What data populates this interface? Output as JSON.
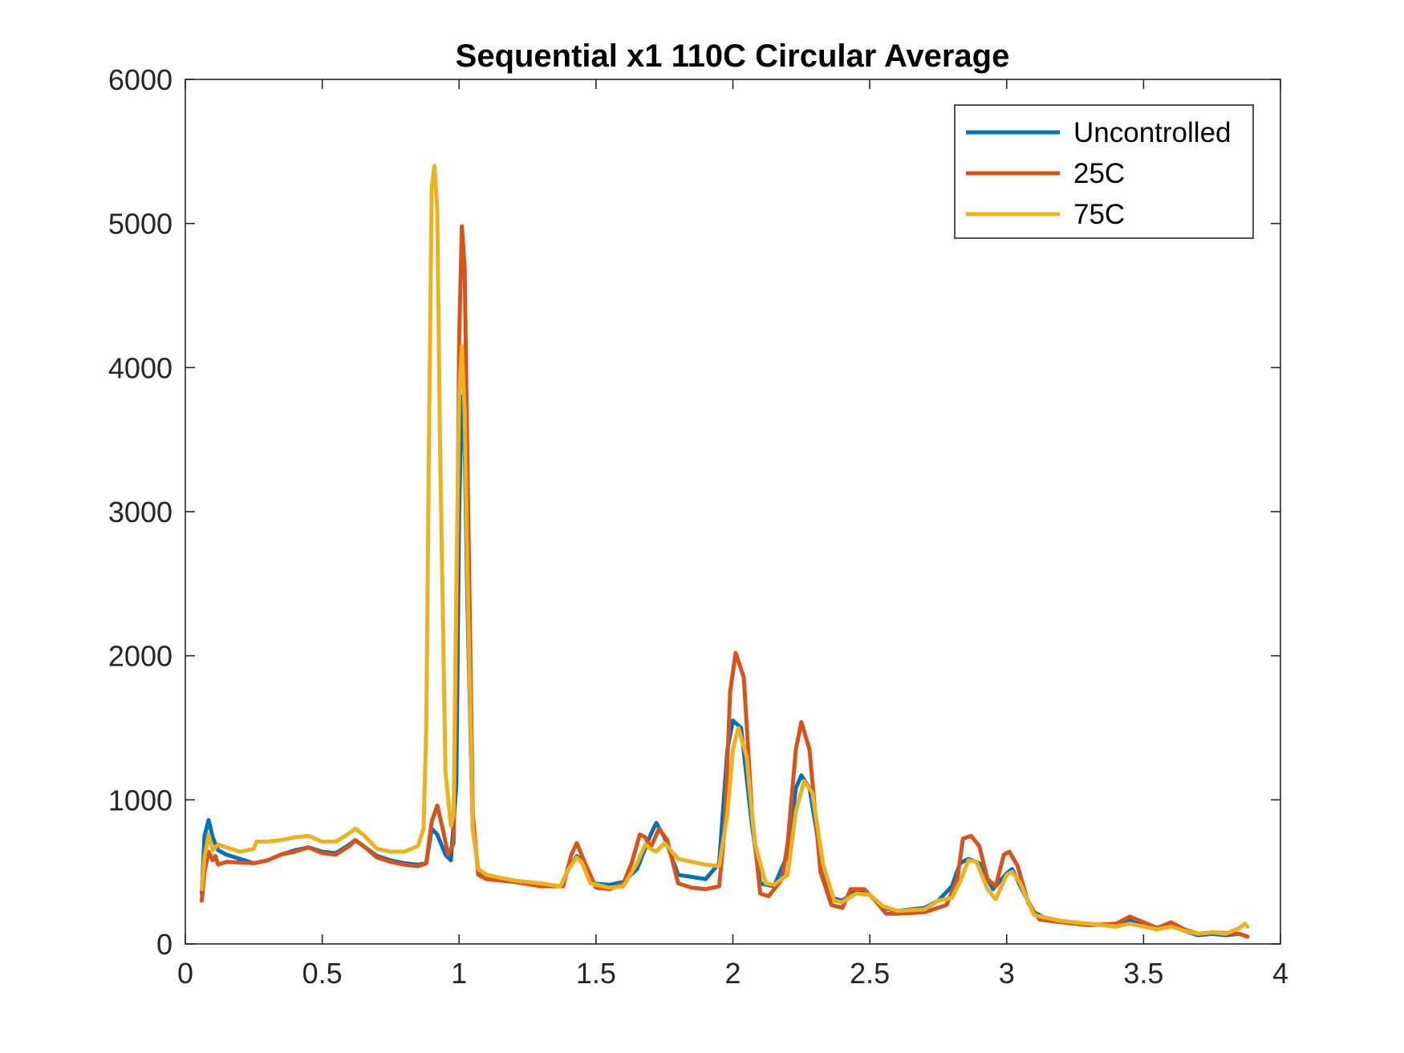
{
  "chart_data": {
    "type": "line",
    "title": "Sequential x1 110C Circular Average",
    "xlabel": "",
    "ylabel": "",
    "xlim": [
      0,
      4
    ],
    "ylim": [
      0,
      6000
    ],
    "xticks": [
      0,
      0.5,
      1,
      1.5,
      2,
      2.5,
      3,
      3.5,
      4
    ],
    "xtick_labels": [
      "0",
      "0.5",
      "1",
      "1.5",
      "2",
      "2.5",
      "3",
      "3.5",
      "4"
    ],
    "yticks": [
      0,
      1000,
      2000,
      3000,
      4000,
      5000,
      6000
    ],
    "ytick_labels": [
      "0",
      "1000",
      "2000",
      "3000",
      "4000",
      "5000",
      "6000"
    ],
    "grid": false,
    "legend": {
      "position": "top-right"
    },
    "series": [
      {
        "name": "Uncontrolled",
        "color": "#0072BD",
        "points": [
          [
            0.06,
            350
          ],
          [
            0.07,
            750
          ],
          [
            0.085,
            860
          ],
          [
            0.1,
            740
          ],
          [
            0.12,
            650
          ],
          [
            0.15,
            620
          ],
          [
            0.2,
            590
          ],
          [
            0.25,
            560
          ],
          [
            0.3,
            580
          ],
          [
            0.35,
            620
          ],
          [
            0.4,
            650
          ],
          [
            0.45,
            670
          ],
          [
            0.5,
            640
          ],
          [
            0.55,
            630
          ],
          [
            0.6,
            690
          ],
          [
            0.62,
            720
          ],
          [
            0.65,
            680
          ],
          [
            0.7,
            610
          ],
          [
            0.75,
            580
          ],
          [
            0.8,
            560
          ],
          [
            0.85,
            550
          ],
          [
            0.88,
            560
          ],
          [
            0.9,
            800
          ],
          [
            0.92,
            760
          ],
          [
            0.95,
            620
          ],
          [
            0.97,
            580
          ],
          [
            0.99,
            1100
          ],
          [
            1.0,
            3000
          ],
          [
            1.01,
            3800
          ],
          [
            1.02,
            3500
          ],
          [
            1.03,
            2400
          ],
          [
            1.05,
            800
          ],
          [
            1.07,
            520
          ],
          [
            1.1,
            470
          ],
          [
            1.2,
            440
          ],
          [
            1.3,
            410
          ],
          [
            1.37,
            400
          ],
          [
            1.4,
            520
          ],
          [
            1.43,
            610
          ],
          [
            1.45,
            580
          ],
          [
            1.48,
            420
          ],
          [
            1.55,
            410
          ],
          [
            1.6,
            430
          ],
          [
            1.65,
            520
          ],
          [
            1.7,
            760
          ],
          [
            1.72,
            840
          ],
          [
            1.75,
            740
          ],
          [
            1.8,
            480
          ],
          [
            1.9,
            450
          ],
          [
            1.95,
            560
          ],
          [
            1.98,
            1350
          ],
          [
            2.0,
            1550
          ],
          [
            2.03,
            1500
          ],
          [
            2.07,
            820
          ],
          [
            2.1,
            420
          ],
          [
            2.15,
            400
          ],
          [
            2.2,
            620
          ],
          [
            2.23,
            1080
          ],
          [
            2.25,
            1170
          ],
          [
            2.28,
            1080
          ],
          [
            2.32,
            620
          ],
          [
            2.36,
            320
          ],
          [
            2.4,
            300
          ],
          [
            2.45,
            370
          ],
          [
            2.5,
            340
          ],
          [
            2.55,
            250
          ],
          [
            2.6,
            230
          ],
          [
            2.7,
            250
          ],
          [
            2.75,
            300
          ],
          [
            2.8,
            400
          ],
          [
            2.83,
            560
          ],
          [
            2.86,
            590
          ],
          [
            2.9,
            560
          ],
          [
            2.95,
            380
          ],
          [
            3.0,
            490
          ],
          [
            3.02,
            520
          ],
          [
            3.05,
            400
          ],
          [
            3.1,
            220
          ],
          [
            3.15,
            170
          ],
          [
            3.2,
            160
          ],
          [
            3.3,
            140
          ],
          [
            3.4,
            120
          ],
          [
            3.45,
            160
          ],
          [
            3.5,
            150
          ],
          [
            3.55,
            110
          ],
          [
            3.6,
            130
          ],
          [
            3.65,
            90
          ],
          [
            3.7,
            60
          ],
          [
            3.75,
            70
          ],
          [
            3.8,
            60
          ],
          [
            3.85,
            70
          ],
          [
            3.88,
            50
          ]
        ]
      },
      {
        "name": "25C",
        "color": "#D95319",
        "points": [
          [
            0.06,
            300
          ],
          [
            0.07,
            500
          ],
          [
            0.085,
            640
          ],
          [
            0.1,
            580
          ],
          [
            0.11,
            610
          ],
          [
            0.12,
            550
          ],
          [
            0.15,
            570
          ],
          [
            0.2,
            565
          ],
          [
            0.25,
            560
          ],
          [
            0.3,
            580
          ],
          [
            0.35,
            620
          ],
          [
            0.4,
            640
          ],
          [
            0.45,
            670
          ],
          [
            0.5,
            630
          ],
          [
            0.55,
            620
          ],
          [
            0.6,
            680
          ],
          [
            0.62,
            720
          ],
          [
            0.65,
            680
          ],
          [
            0.7,
            600
          ],
          [
            0.75,
            570
          ],
          [
            0.8,
            550
          ],
          [
            0.85,
            540
          ],
          [
            0.88,
            560
          ],
          [
            0.9,
            850
          ],
          [
            0.92,
            960
          ],
          [
            0.94,
            800
          ],
          [
            0.96,
            620
          ],
          [
            0.98,
            700
          ],
          [
            0.99,
            2000
          ],
          [
            1.0,
            4200
          ],
          [
            1.01,
            4980
          ],
          [
            1.02,
            4700
          ],
          [
            1.03,
            3400
          ],
          [
            1.05,
            900
          ],
          [
            1.07,
            480
          ],
          [
            1.1,
            450
          ],
          [
            1.2,
            430
          ],
          [
            1.3,
            400
          ],
          [
            1.38,
            400
          ],
          [
            1.41,
            620
          ],
          [
            1.43,
            700
          ],
          [
            1.46,
            560
          ],
          [
            1.5,
            390
          ],
          [
            1.55,
            380
          ],
          [
            1.6,
            420
          ],
          [
            1.63,
            560
          ],
          [
            1.66,
            760
          ],
          [
            1.68,
            740
          ],
          [
            1.7,
            670
          ],
          [
            1.73,
            800
          ],
          [
            1.76,
            720
          ],
          [
            1.8,
            420
          ],
          [
            1.85,
            390
          ],
          [
            1.9,
            380
          ],
          [
            1.95,
            400
          ],
          [
            1.97,
            800
          ],
          [
            1.99,
            1750
          ],
          [
            2.01,
            2020
          ],
          [
            2.04,
            1850
          ],
          [
            2.07,
            900
          ],
          [
            2.1,
            350
          ],
          [
            2.13,
            330
          ],
          [
            2.18,
            450
          ],
          [
            2.2,
            700
          ],
          [
            2.23,
            1350
          ],
          [
            2.25,
            1540
          ],
          [
            2.28,
            1350
          ],
          [
            2.32,
            500
          ],
          [
            2.36,
            270
          ],
          [
            2.4,
            250
          ],
          [
            2.43,
            380
          ],
          [
            2.48,
            380
          ],
          [
            2.52,
            300
          ],
          [
            2.56,
            210
          ],
          [
            2.6,
            210
          ],
          [
            2.7,
            220
          ],
          [
            2.78,
            270
          ],
          [
            2.82,
            450
          ],
          [
            2.84,
            730
          ],
          [
            2.87,
            750
          ],
          [
            2.9,
            680
          ],
          [
            2.93,
            450
          ],
          [
            2.96,
            400
          ],
          [
            2.99,
            620
          ],
          [
            3.01,
            640
          ],
          [
            3.04,
            540
          ],
          [
            3.08,
            280
          ],
          [
            3.12,
            170
          ],
          [
            3.2,
            150
          ],
          [
            3.3,
            130
          ],
          [
            3.4,
            140
          ],
          [
            3.45,
            190
          ],
          [
            3.5,
            150
          ],
          [
            3.55,
            110
          ],
          [
            3.6,
            150
          ],
          [
            3.65,
            100
          ],
          [
            3.7,
            70
          ],
          [
            3.75,
            80
          ],
          [
            3.8,
            75
          ],
          [
            3.85,
            70
          ],
          [
            3.88,
            50
          ]
        ]
      },
      {
        "name": "75C",
        "color": "#EDB120",
        "points": [
          [
            0.06,
            380
          ],
          [
            0.07,
            600
          ],
          [
            0.085,
            760
          ],
          [
            0.1,
            650
          ],
          [
            0.12,
            690
          ],
          [
            0.15,
            670
          ],
          [
            0.2,
            640
          ],
          [
            0.25,
            660
          ],
          [
            0.26,
            710
          ],
          [
            0.3,
            710
          ],
          [
            0.35,
            720
          ],
          [
            0.4,
            740
          ],
          [
            0.45,
            750
          ],
          [
            0.5,
            710
          ],
          [
            0.55,
            710
          ],
          [
            0.6,
            770
          ],
          [
            0.62,
            800
          ],
          [
            0.65,
            760
          ],
          [
            0.7,
            660
          ],
          [
            0.75,
            640
          ],
          [
            0.8,
            640
          ],
          [
            0.85,
            680
          ],
          [
            0.87,
            800
          ],
          [
            0.88,
            1500
          ],
          [
            0.89,
            3500
          ],
          [
            0.9,
            5250
          ],
          [
            0.91,
            5400
          ],
          [
            0.92,
            5100
          ],
          [
            0.93,
            3500
          ],
          [
            0.95,
            1200
          ],
          [
            0.97,
            820
          ],
          [
            0.98,
            900
          ],
          [
            0.99,
            2500
          ],
          [
            1.0,
            3800
          ],
          [
            1.01,
            4150
          ],
          [
            1.02,
            3700
          ],
          [
            1.03,
            2600
          ],
          [
            1.05,
            800
          ],
          [
            1.07,
            520
          ],
          [
            1.1,
            480
          ],
          [
            1.2,
            440
          ],
          [
            1.3,
            420
          ],
          [
            1.37,
            400
          ],
          [
            1.4,
            520
          ],
          [
            1.43,
            600
          ],
          [
            1.45,
            560
          ],
          [
            1.48,
            420
          ],
          [
            1.55,
            390
          ],
          [
            1.6,
            400
          ],
          [
            1.65,
            560
          ],
          [
            1.68,
            690
          ],
          [
            1.7,
            660
          ],
          [
            1.72,
            640
          ],
          [
            1.75,
            700
          ],
          [
            1.8,
            590
          ],
          [
            1.85,
            570
          ],
          [
            1.9,
            550
          ],
          [
            1.95,
            540
          ],
          [
            1.98,
            900
          ],
          [
            2.0,
            1350
          ],
          [
            2.02,
            1500
          ],
          [
            2.05,
            1300
          ],
          [
            2.08,
            700
          ],
          [
            2.12,
            420
          ],
          [
            2.15,
            410
          ],
          [
            2.2,
            480
          ],
          [
            2.23,
            920
          ],
          [
            2.26,
            1130
          ],
          [
            2.29,
            1050
          ],
          [
            2.33,
            550
          ],
          [
            2.37,
            300
          ],
          [
            2.4,
            290
          ],
          [
            2.45,
            350
          ],
          [
            2.5,
            340
          ],
          [
            2.55,
            260
          ],
          [
            2.6,
            230
          ],
          [
            2.7,
            240
          ],
          [
            2.75,
            300
          ],
          [
            2.8,
            320
          ],
          [
            2.83,
            430
          ],
          [
            2.86,
            580
          ],
          [
            2.89,
            570
          ],
          [
            2.93,
            380
          ],
          [
            2.96,
            310
          ],
          [
            3.0,
            480
          ],
          [
            3.02,
            500
          ],
          [
            3.05,
            420
          ],
          [
            3.1,
            200
          ],
          [
            3.15,
            180
          ],
          [
            3.2,
            160
          ],
          [
            3.3,
            140
          ],
          [
            3.4,
            120
          ],
          [
            3.45,
            140
          ],
          [
            3.5,
            120
          ],
          [
            3.55,
            100
          ],
          [
            3.6,
            120
          ],
          [
            3.65,
            90
          ],
          [
            3.7,
            70
          ],
          [
            3.75,
            80
          ],
          [
            3.8,
            70
          ],
          [
            3.85,
            110
          ],
          [
            3.87,
            140
          ],
          [
            3.88,
            120
          ]
        ]
      }
    ]
  }
}
